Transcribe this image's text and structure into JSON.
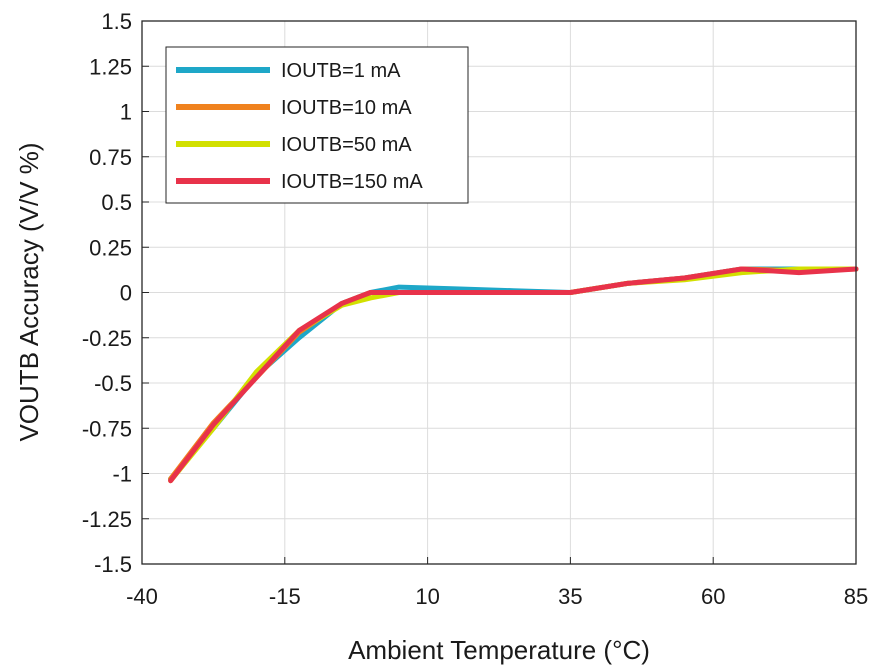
{
  "chart_data": {
    "type": "line",
    "title": "",
    "xlabel": "Ambient Temperature (°C)",
    "ylabel": "VOUTB Accuracy (V/V %)",
    "xlim": [
      -40,
      85
    ],
    "ylim": [
      -1.5,
      1.5
    ],
    "xticks": [
      "-40",
      "-15",
      "10",
      "35",
      "60",
      "85"
    ],
    "yticks": [
      "1.5",
      "1.25",
      "1",
      "0.75",
      "0.5",
      "0.25",
      "0",
      "-0.25",
      "-0.5",
      "-0.75",
      "-1",
      "-1.25",
      "-1.5"
    ],
    "grid": true,
    "legend_position": "top-left",
    "series": [
      {
        "name": "IOUTB=1 mA",
        "color": "#1ea7c8",
        "x": [
          -35,
          -27.5,
          -20,
          -12.5,
          -5,
          0,
          5,
          15,
          25,
          35,
          45,
          55,
          65,
          75,
          85
        ],
        "y": [
          -1.03,
          -0.75,
          -0.46,
          -0.25,
          -0.06,
          0.0,
          0.03,
          0.02,
          0.01,
          0.0,
          0.05,
          0.08,
          0.13,
          0.13,
          0.13
        ]
      },
      {
        "name": "IOUTB=10 mA",
        "color": "#f0821e",
        "x": [
          -35,
          -27.5,
          -20,
          -12.5,
          -5,
          0,
          5,
          15,
          25,
          35,
          45,
          55,
          65,
          75,
          85
        ],
        "y": [
          -1.03,
          -0.72,
          -0.47,
          -0.22,
          -0.06,
          0.0,
          0.0,
          0.0,
          0.0,
          0.0,
          0.05,
          0.08,
          0.13,
          0.12,
          0.13
        ]
      },
      {
        "name": "IOUTB=50 mA",
        "color": "#d2e000",
        "x": [
          -35,
          -27.5,
          -20,
          -12.5,
          -5,
          0,
          5,
          15,
          25,
          35,
          45,
          55,
          65,
          75,
          85
        ],
        "y": [
          -1.04,
          -0.75,
          -0.44,
          -0.21,
          -0.07,
          -0.03,
          0.0,
          0.0,
          0.0,
          0.0,
          0.05,
          0.07,
          0.11,
          0.13,
          0.13
        ]
      },
      {
        "name": "IOUTB=150 mA",
        "color": "#e8324a",
        "x": [
          -35,
          -27.5,
          -20,
          -12.5,
          -5,
          0,
          5,
          15,
          25,
          35,
          45,
          55,
          65,
          75,
          85
        ],
        "y": [
          -1.04,
          -0.73,
          -0.47,
          -0.21,
          -0.06,
          0.0,
          0.0,
          0.0,
          0.0,
          0.0,
          0.05,
          0.08,
          0.13,
          0.11,
          0.13
        ]
      }
    ]
  }
}
